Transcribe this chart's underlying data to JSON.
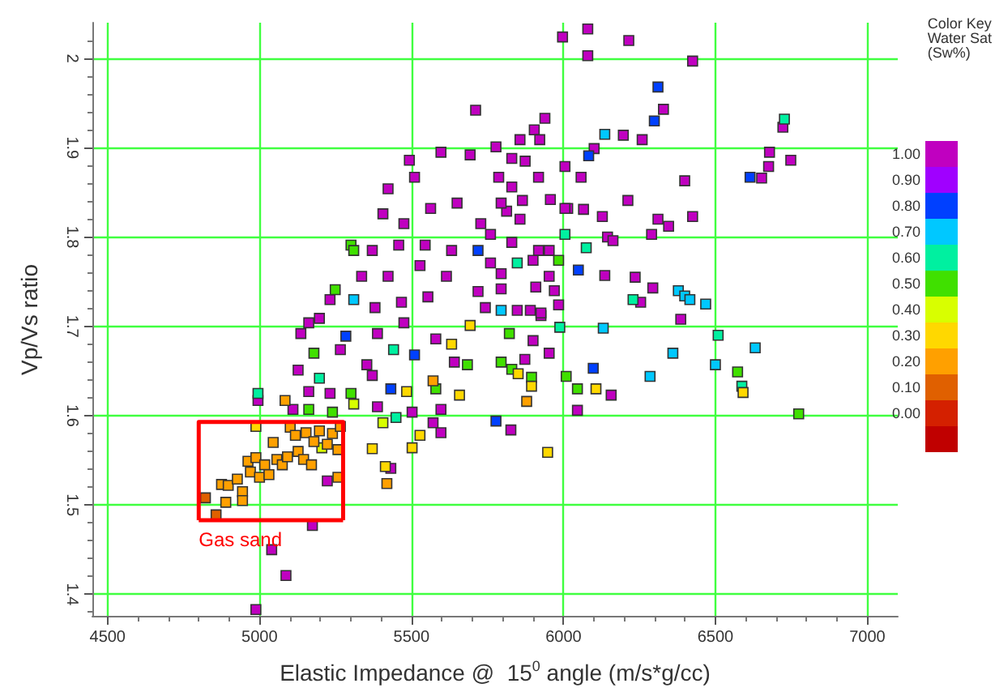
{
  "chart_data": {
    "type": "scatter",
    "xlabel": "Elastic Impedance @  15$^{0}$ angle (m/s*g/cc)",
    "ylabel": "Vp/Vs ratio",
    "clabel": "Color Key\nWater Sat\n(Sw%)",
    "xlim": [
      4450,
      7100
    ],
    "ylim": [
      1.375,
      2.04
    ],
    "xticks": [
      4500,
      5000,
      5500,
      6000,
      6500,
      7000
    ],
    "yticks": [
      1.4,
      1.5,
      1.6,
      1.7,
      1.8,
      1.9,
      2
    ],
    "clim": [
      -0.15,
      1.05
    ],
    "cticks": [
      {
        "value": 0,
        "label": "0.00"
      },
      {
        "value": 0.1,
        "label": "0.10"
      },
      {
        "value": 0.2,
        "label": "0.20"
      },
      {
        "value": 0.3,
        "label": "0.30"
      },
      {
        "value": 0.4,
        "label": "0.40"
      },
      {
        "value": 0.5,
        "label": "0.50"
      },
      {
        "value": 0.6,
        "label": "0.60"
      },
      {
        "value": 0.7,
        "label": "0.70"
      },
      {
        "value": 0.8,
        "label": "0.80"
      },
      {
        "value": 0.9,
        "label": "0.90"
      },
      {
        "value": 1,
        "label": "1.00"
      }
    ],
    "grid": true,
    "annotations": [
      "Gas sand"
    ],
    "series": [
      {
        "color": "#c000c0",
        "marker": "square",
        "x": [
          5223,
          5174,
          5040,
          5087,
          4988,
          4995,
          5711,
          5493,
          5597,
          5693,
          5423,
          5510,
          5406,
          5475,
          5563,
          5650,
          5371,
          5458,
          5545,
          5632,
          5336,
          5423,
          5528,
          5615,
          5232,
          5380,
          5467,
          5554,
          5162,
          5136,
          5197,
          5388,
          5475,
          5580,
          5266,
          5353,
          5127,
          5162,
          5232,
          5371,
          5110,
          5388,
          5502,
          5571,
          5597,
          5432,
          5597,
          5641,
          5719,
          5728,
          6080,
          5997,
          6215,
          6080,
          6425,
          6329,
          6197,
          6259,
          6722,
          6678,
          6748,
          6675,
          6652,
          6399,
          6101,
          6005,
          6058,
          6212,
          6311,
          6346,
          6425,
          6128,
          6066,
          6014,
          6290,
          6145,
          6163,
          6136,
          6236,
          6294,
          6254,
          6386,
          6157,
          6046,
          5953,
          5827,
          5873,
          5900,
          5926,
          5984,
          5953,
          5900,
          5795,
          5857,
          5813,
          5904,
          5939,
          5922,
          5857,
          5778,
          5830,
          5874,
          5918,
          5787,
          5830,
          5957,
          5865,
          5795,
          6005,
          5760,
          5830,
          5918,
          5953,
          5760,
          5795,
          5909,
          5970,
          5743,
          5848,
          5891,
          5926
        ],
        "values": [
          1.527,
          1.477,
          1.45,
          1.421,
          1.383,
          1.617,
          1.942,
          1.886,
          1.895,
          1.892,
          1.854,
          1.867,
          1.826,
          1.815,
          1.832,
          1.838,
          1.785,
          1.791,
          1.791,
          1.785,
          1.756,
          1.756,
          1.768,
          1.756,
          1.73,
          1.721,
          1.727,
          1.733,
          1.704,
          1.692,
          1.709,
          1.692,
          1.704,
          1.686,
          1.674,
          1.657,
          1.651,
          1.627,
          1.625,
          1.645,
          1.607,
          1.61,
          1.604,
          1.592,
          1.607,
          1.541,
          1.581,
          1.66,
          1.739,
          1.815,
          2.033,
          2.024,
          2.02,
          2.003,
          1.997,
          1.943,
          1.914,
          1.909,
          1.923,
          1.895,
          1.886,
          1.879,
          1.866,
          1.863,
          1.899,
          1.879,
          1.867,
          1.841,
          1.82,
          1.812,
          1.823,
          1.823,
          1.831,
          1.832,
          1.803,
          1.8,
          1.796,
          1.757,
          1.755,
          1.743,
          1.727,
          1.708,
          1.623,
          1.606,
          1.67,
          1.584,
          1.663,
          1.684,
          1.712,
          1.724,
          1.756,
          1.774,
          1.759,
          1.82,
          1.829,
          1.92,
          1.933,
          1.909,
          1.909,
          1.901,
          1.888,
          1.885,
          1.867,
          1.867,
          1.856,
          1.842,
          1.841,
          1.838,
          1.832,
          1.803,
          1.794,
          1.785,
          1.785,
          1.771,
          1.742,
          1.744,
          1.74,
          1.721,
          1.718,
          1.718,
          1.715
        ]
      },
      {
        "color": "#0040ff",
        "marker": "square",
        "x": [
          5719,
          5284,
          5510,
          5432,
          6311,
          6299,
          6614,
          6083,
          6049,
          6098,
          5778
        ],
        "values": [
          1.785,
          1.689,
          1.668,
          1.63,
          1.968,
          1.93,
          1.867,
          1.891,
          1.763,
          1.653,
          1.594
        ]
      },
      {
        "color": "#00c8ff",
        "marker": "square",
        "x": [
          5310,
          6136,
          6378,
          6399,
          6416,
          6468,
          6131,
          6631,
          6360,
          6500,
          6285,
          5795
        ],
        "values": [
          1.73,
          1.915,
          1.74,
          1.734,
          1.73,
          1.725,
          1.698,
          1.676,
          1.67,
          1.657,
          1.644,
          1.718
        ]
      },
      {
        "color": "#00f0a0",
        "marker": "square",
        "x": [
          4995,
          5197,
          5441,
          5449,
          6727,
          6075,
          6005,
          6229,
          5988,
          6509,
          6587,
          5848
        ],
        "values": [
          1.625,
          1.642,
          1.674,
          1.598,
          1.932,
          1.788,
          1.803,
          1.73,
          1.699,
          1.69,
          1.633,
          1.771
        ]
      },
      {
        "color": "#40e000",
        "marker": "square",
        "x": [
          5301,
          5310,
          5249,
          5179,
          5301,
          5162,
          5240,
          5580,
          5684,
          5984,
          6573,
          6009,
          6046,
          6774,
          5895,
          5795,
          5830,
          5822
        ],
        "values": [
          1.791,
          1.785,
          1.741,
          1.67,
          1.625,
          1.607,
          1.604,
          1.63,
          1.657,
          1.774,
          1.649,
          1.644,
          1.63,
          1.602,
          1.643,
          1.66,
          1.652,
          1.692
        ]
      },
      {
        "color": "#d8ff00",
        "marker": "square",
        "x": [
          5205,
          5406,
          5310
        ],
        "values": [
          1.564,
          1.592,
          1.613
        ]
      },
      {
        "color": "#ffd800",
        "marker": "square",
        "x": [
          4988,
          5484,
          5528,
          5658,
          5371,
          5414,
          5502,
          5693,
          5632,
          6107,
          6591,
          5895,
          5948,
          5851
        ],
        "values": [
          1.588,
          1.627,
          1.578,
          1.623,
          1.563,
          1.543,
          1.564,
          1.701,
          1.68,
          1.63,
          1.626,
          1.633,
          1.559,
          1.647
        ]
      },
      {
        "color": "#ffa000",
        "marker": "square",
        "x": [
          4875,
          4897,
          4889,
          4927,
          4944,
          4944,
          4962,
          4970,
          4988,
          5000,
          5017,
          5031,
          5045,
          5057,
          5075,
          5092,
          5101,
          5118,
          5127,
          5145,
          5153,
          5171,
          5179,
          5197,
          5223,
          5240,
          5258,
          5266,
          5258,
          5084,
          5419,
          5571,
          5879
        ],
        "values": [
          1.523,
          1.522,
          1.503,
          1.529,
          1.515,
          1.505,
          1.549,
          1.537,
          1.553,
          1.531,
          1.545,
          1.534,
          1.57,
          1.551,
          1.545,
          1.554,
          1.587,
          1.578,
          1.56,
          1.551,
          1.581,
          1.545,
          1.571,
          1.583,
          1.568,
          1.58,
          1.562,
          1.588,
          1.531,
          1.617,
          1.524,
          1.639,
          1.616
        ]
      },
      {
        "color": "#e06000",
        "marker": "square",
        "x": [
          4822,
          4857
        ],
        "values": [
          1.508,
          1.489
        ]
      },
      {
        "type": "line",
        "color": "#ff0000",
        "marker": "none",
        "x": [
          4800,
          4800,
          5275,
          5275
        ],
        "values": [
          1.483,
          1.593,
          1.593,
          1.483
        ]
      },
      {
        "type": "line",
        "color": "#ff0000",
        "marker": "none",
        "x": [
          4800,
          5275
        ],
        "values": [
          1.483,
          1.483
        ]
      }
    ]
  }
}
